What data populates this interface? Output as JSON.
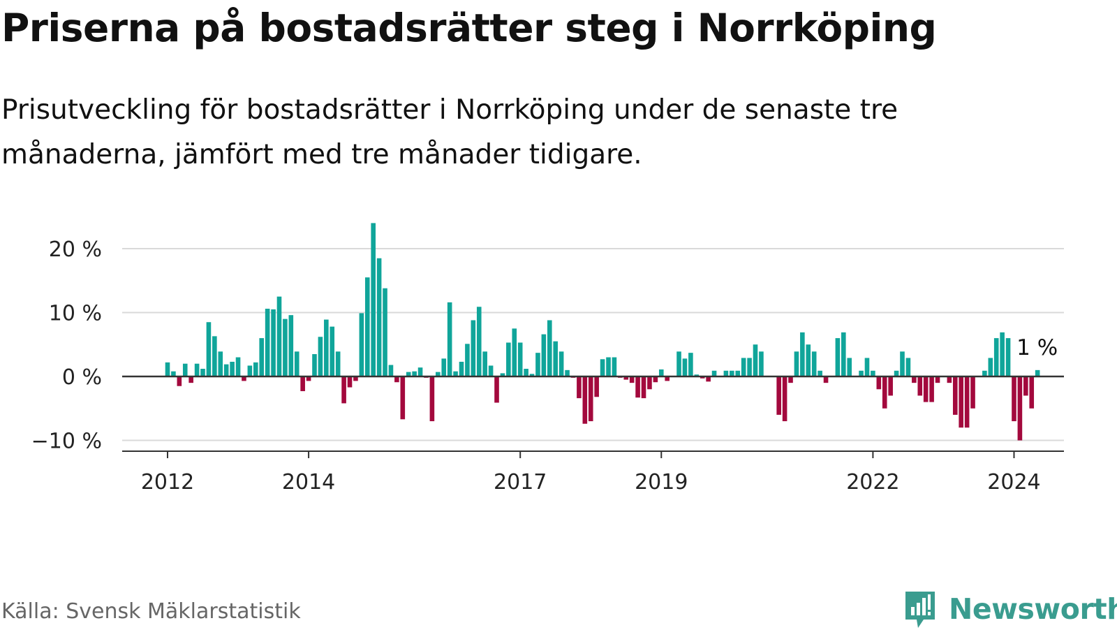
{
  "title": "Priserna på bostadsrätter steg i Norrköping",
  "subtitle": "Prisutveckling för bostadsrätter i Norrköping under de senaste tre månaderna, jämfört med tre månader tidigare.",
  "source": "Källa: Svensk Mäklarstatistik",
  "brand": {
    "name": "Newsworthy",
    "icon": "newsworthy-logo-icon"
  },
  "colors": {
    "positive": "#10a59a",
    "negative": "#a3093d",
    "grid": "#d9d9d9",
    "axis": "#333333",
    "brand": "#3a9c8f"
  },
  "chart_data": {
    "type": "bar",
    "title": "Priserna på bostadsrätter steg i Norrköping",
    "xlabel": "",
    "ylabel": "",
    "unit": "%",
    "ylim": [
      -11,
      24
    ],
    "yticks": [
      20,
      10,
      0,
      -10
    ],
    "ytick_labels": [
      "20 %",
      "10 %",
      "0 %",
      "−10 %"
    ],
    "xticks": [
      {
        "label": "2012",
        "index": 0
      },
      {
        "label": "2014",
        "index": 24
      },
      {
        "label": "2017",
        "index": 60
      },
      {
        "label": "2019",
        "index": 84
      },
      {
        "label": "2022",
        "index": 120
      },
      {
        "label": "2024",
        "index": 144
      }
    ],
    "first_month": "2012-01",
    "last_label": "1 %",
    "grid": true,
    "values": [
      2.2,
      0.8,
      -1.5,
      2.0,
      -1.0,
      2.0,
      1.2,
      8.5,
      6.3,
      3.9,
      1.9,
      2.3,
      3.0,
      -0.7,
      1.7,
      2.2,
      6.0,
      10.6,
      10.5,
      12.5,
      9.0,
      9.6,
      3.9,
      -2.3,
      -0.7,
      3.5,
      6.2,
      8.9,
      7.8,
      3.9,
      -4.2,
      -1.7,
      -0.7,
      9.9,
      15.5,
      24.0,
      18.5,
      13.8,
      1.8,
      -0.9,
      -6.7,
      0.7,
      0.8,
      1.4,
      -0.2,
      -7.0,
      0.7,
      2.8,
      11.6,
      0.8,
      2.3,
      5.1,
      8.8,
      10.9,
      3.9,
      1.7,
      -4.1,
      0.5,
      5.3,
      7.5,
      5.3,
      1.2,
      0.4,
      3.7,
      6.6,
      8.8,
      5.5,
      3.9,
      1.0,
      -0.2,
      -3.4,
      -7.4,
      -7.0,
      -3.2,
      2.7,
      3.0,
      3.0,
      -0.2,
      -0.5,
      -1.0,
      -3.3,
      -3.4,
      -2.0,
      -0.9,
      1.1,
      -0.7,
      0.0,
      3.9,
      2.8,
      3.7,
      0.3,
      -0.3,
      -0.8,
      0.9,
      0.0,
      0.9,
      0.9,
      0.9,
      2.9,
      2.9,
      5.0,
      3.9,
      -0.1,
      -0.1,
      -6.0,
      -7.0,
      -1.0,
      3.9,
      6.9,
      5.0,
      3.9,
      0.9,
      -1.0,
      0.0,
      6.0,
      6.9,
      2.9,
      0.0,
      0.9,
      2.9,
      0.9,
      -2.0,
      -5.0,
      -3.0,
      0.9,
      3.9,
      2.9,
      -1.0,
      -3.0,
      -4.0,
      -4.0,
      -1.0,
      0.0,
      -1.0,
      -6.0,
      -8.0,
      -8.0,
      -5.0,
      0.0,
      0.9,
      2.9,
      6.0,
      6.9,
      6.0,
      -7.0,
      -10.0,
      -3.0,
      -5.0,
      1.0
    ]
  }
}
